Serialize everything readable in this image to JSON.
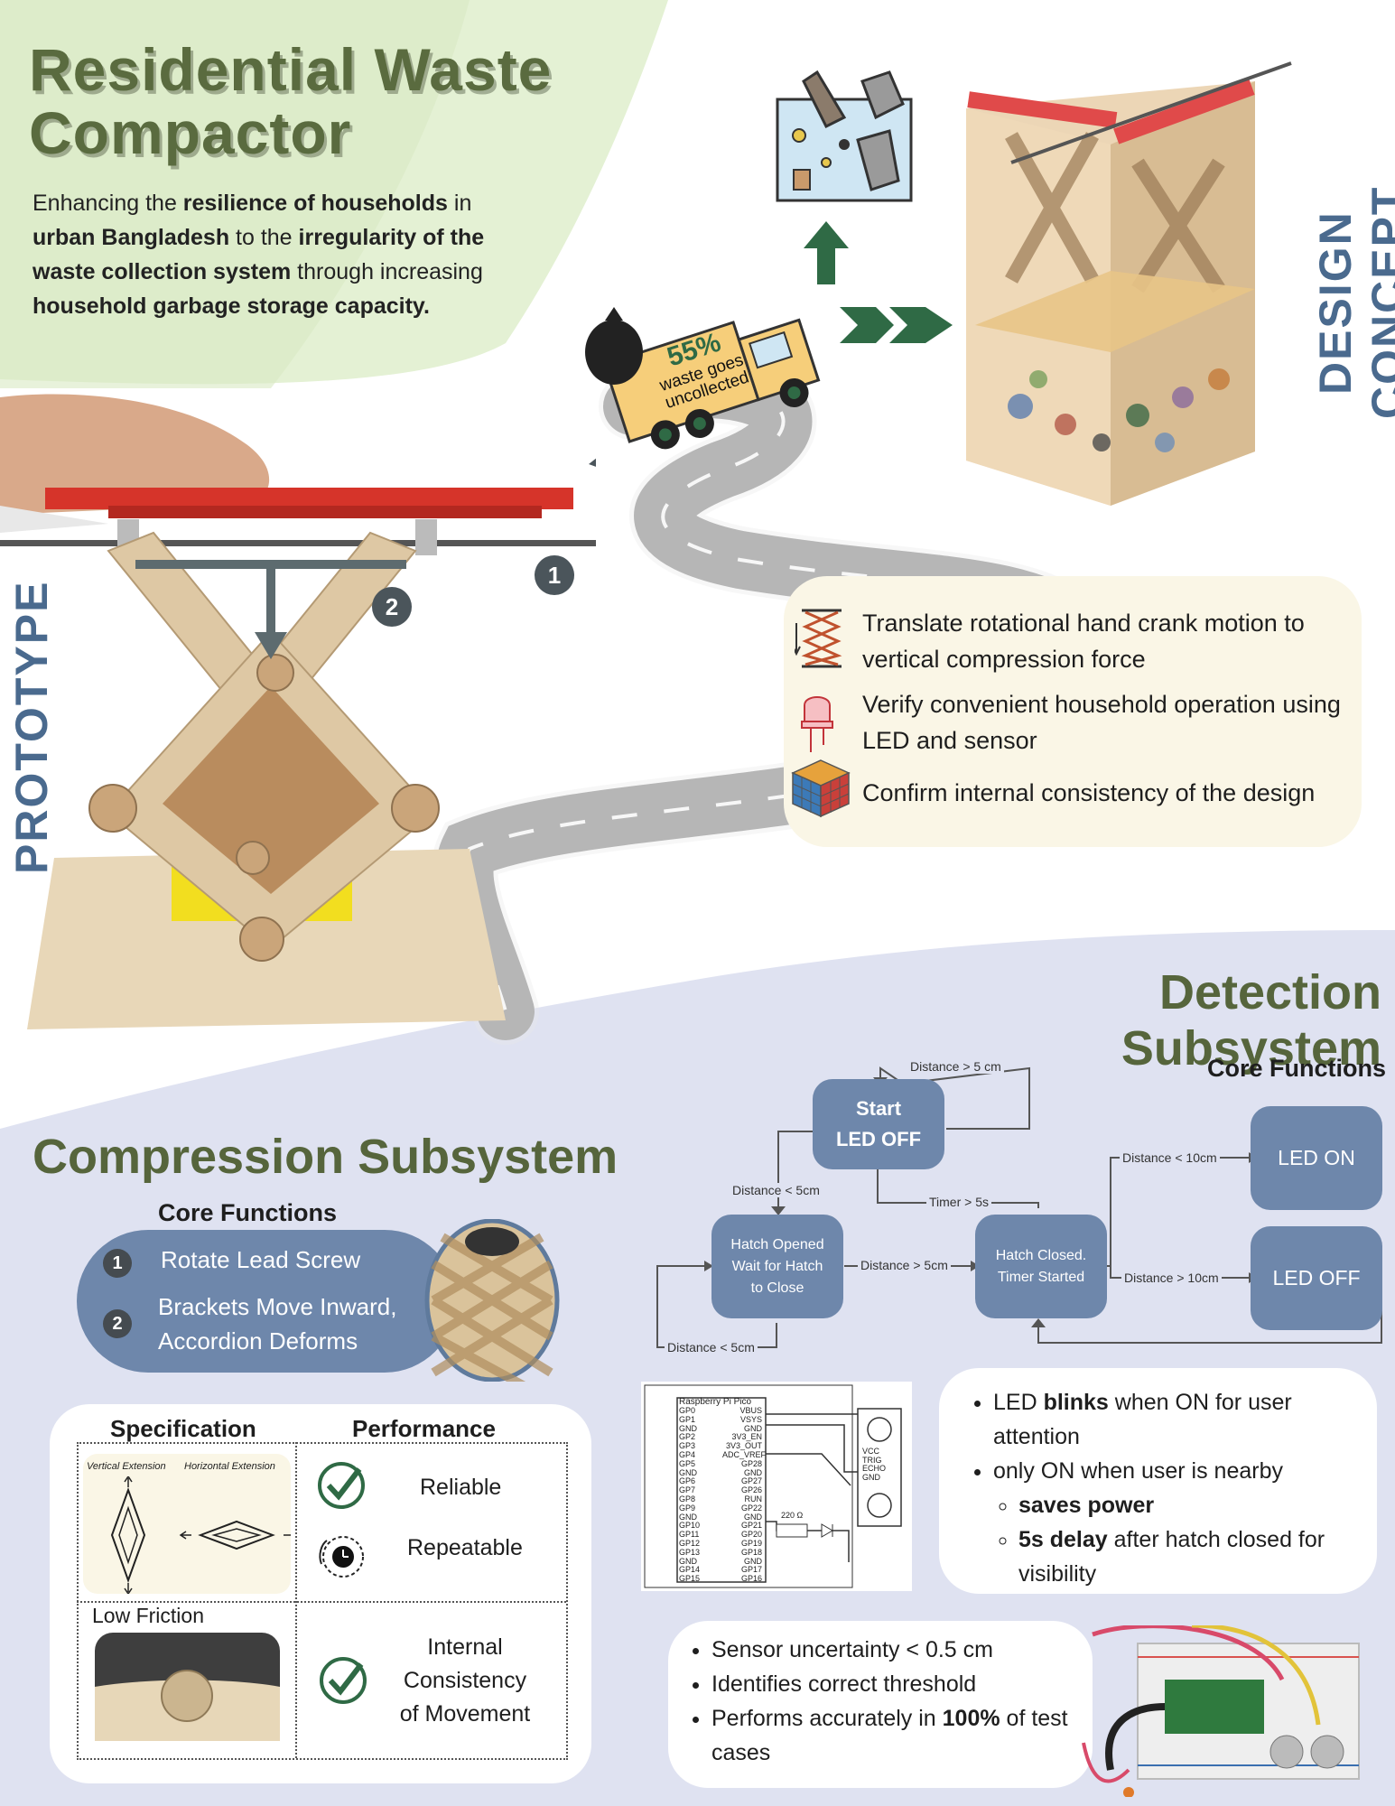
{
  "title_line1": "Residential Waste",
  "title_line2": "Compactor",
  "intro": {
    "p1": "Enhancing the ",
    "b1": "resilience of households",
    "p2": " in ",
    "b2": "urban Bangladesh",
    "p3": " to the ",
    "b3": "irregularity of the waste collection system",
    "p4": " through increasing ",
    "b4": "household garbage storage capacity."
  },
  "truck": {
    "percent": "55%",
    "line1": "waste goes",
    "line2": "uncollected"
  },
  "design_concept": "DESIGN CONCEPT",
  "prototype": "PROTOTYPE",
  "step1": "1",
  "step2": "2",
  "goals": [
    {
      "text": "Translate rotational hand crank motion to vertical compression force"
    },
    {
      "text": "Verify convenient household operation using LED and sensor"
    },
    {
      "text": "Confirm internal consistency of the design"
    }
  ],
  "detection": {
    "title": "Detection Subsystem",
    "core_functions": "Core Functions",
    "start_l1": "Start",
    "start_l2": "LED OFF",
    "hatch_open_l1": "Hatch Opened",
    "hatch_open_l2": "Wait for Hatch",
    "hatch_open_l3": "to Close",
    "hatch_closed_l1": "Hatch Closed.",
    "hatch_closed_l2": "Timer Started",
    "led_on": "LED ON",
    "led_off": "LED OFF",
    "t_dist_gt5": "Distance > 5 cm",
    "t_dist_lt5": "Distance < 5cm",
    "t_timer": "Timer > 5s",
    "t_dist_gt5b": "Distance > 5cm",
    "t_dist_lt5b": "Distance < 5cm",
    "t_lt10": "Distance < 10cm",
    "t_gt10": "Distance > 10cm",
    "circuit": {
      "board": "Raspberry Pi Pico",
      "left_pins": [
        "GP0",
        "GP1",
        "GND",
        "GP2",
        "GP3",
        "GP4",
        "GP5",
        "GND",
        "GP6",
        "GP7",
        "GP8",
        "GP9",
        "GND",
        "GP10",
        "GP11",
        "GP12",
        "GP13",
        "GND",
        "GP14",
        "GP15"
      ],
      "right_pins": [
        "VBUS",
        "VSYS",
        "GND",
        "3V3_EN",
        "3V3_OUT",
        "ADC_VREF",
        "GP28",
        "GND",
        "GP27",
        "GP26",
        "RUN",
        "GP22",
        "GND",
        "GP21",
        "GP20",
        "GP19",
        "GP18",
        "GND",
        "GP17",
        "GP16"
      ],
      "sensor_pins": [
        "VCC",
        "TRIG",
        "ECHO",
        "GND"
      ],
      "resistor": "220 Ω"
    },
    "bullets1": {
      "a1": "LED ",
      "a2": "blinks",
      "a3": " when ON for user attention",
      "b": "only ON when user is nearby",
      "c": "saves power",
      "d1": "5s delay",
      "d2": " after hatch closed for visibility"
    },
    "bullets2": {
      "a": "Sensor uncertainty < 0.5 cm",
      "b": "Identifies correct threshold",
      "c1": "Performs accurately in ",
      "c2": "100%",
      "c3": " of test cases"
    }
  },
  "compression": {
    "title": "Compression Subsystem",
    "core_functions": "Core Functions",
    "f1": "Rotate Lead Screw",
    "f2_l1": "Brackets Move Inward,",
    "f2_l2": "Accordion Deforms",
    "spec": "Specification",
    "perf": "Performance",
    "sketch_v": "Vertical Extension",
    "sketch_h": "Horizontal Extension",
    "reliable": "Reliable",
    "repeatable": "Repeatable",
    "low_friction": "Low Friction",
    "internal_l1": "Internal",
    "internal_l2": "Consistency",
    "internal_l3": "of Movement"
  },
  "colors": {
    "title_green": "#5a6b3f",
    "node_blue": "#6e87ab",
    "lavender": "#dfe2f1",
    "light_green": "#e6f2d6",
    "cream": "#faf6e6"
  }
}
